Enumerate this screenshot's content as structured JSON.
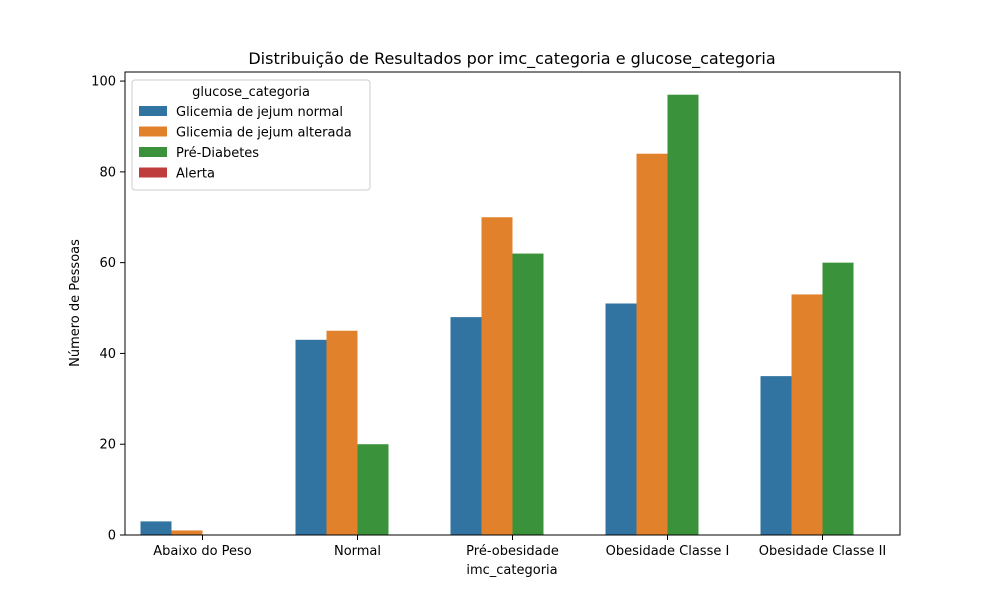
{
  "chart_data": {
    "type": "bar",
    "title": "Distribuição de Resultados por imc_categoria e glucose_categoria",
    "xlabel": "imc_categoria",
    "ylabel": "Número de Pessoas",
    "categories": [
      "Abaixo do Peso",
      "Normal",
      "Pré-obesidade",
      "Obesidade Classe I",
      "Obesidade Classe II"
    ],
    "series": [
      {
        "name": "Glicemia de jejum normal",
        "color": "#3274a1",
        "values": [
          3,
          43,
          48,
          51,
          35
        ]
      },
      {
        "name": "Glicemia de jejum alterada",
        "color": "#e1812c",
        "values": [
          1,
          45,
          70,
          84,
          53
        ]
      },
      {
        "name": "Pré-Diabetes",
        "color": "#3a923a",
        "values": [
          0,
          20,
          62,
          97,
          60
        ]
      },
      {
        "name": "Alerta",
        "color": "#c03d3e",
        "values": [
          0,
          0,
          0,
          0,
          0
        ]
      }
    ],
    "ylim": [
      0,
      102
    ],
    "yticks": [
      0,
      20,
      40,
      60,
      80,
      100
    ],
    "legend": {
      "title": "glucose_categoria",
      "placement": "top-left"
    },
    "grid": false
  }
}
